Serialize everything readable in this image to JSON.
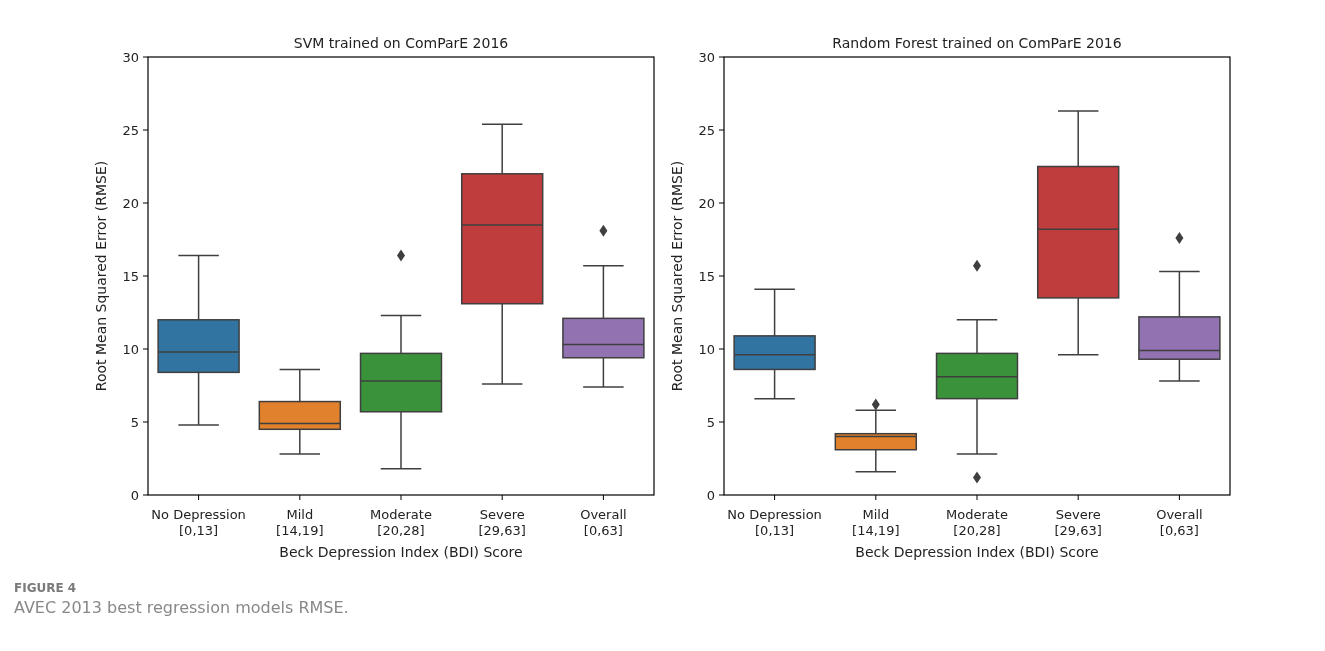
{
  "chart_data": [
    {
      "type": "box",
      "title": "SVM trained on ComParE 2016",
      "xlabel": "Beck Depression Index (BDI) Score",
      "ylabel": "Root Mean Squared Error (RMSE)",
      "categories": [
        "No Depression\n[0,13]",
        "Mild\n[14,19]",
        "Moderate\n[20,28]",
        "Severe\n[29,63]",
        "Overall\n[0,63]"
      ],
      "colors": [
        "#3274a1",
        "#e1812c",
        "#3a923a",
        "#c03d3e",
        "#9372b2"
      ],
      "boxes": [
        {
          "low": 4.8,
          "q1": 8.4,
          "median": 9.8,
          "q3": 12.0,
          "high": 16.4
        },
        {
          "low": 2.8,
          "q1": 4.5,
          "median": 4.9,
          "q3": 6.4,
          "high": 8.6
        },
        {
          "low": 1.8,
          "q1": 5.7,
          "median": 7.8,
          "q3": 9.7,
          "high": 12.3,
          "outliers": [
            16.4
          ]
        },
        {
          "low": 7.6,
          "q1": 13.1,
          "median": 18.5,
          "q3": 22.0,
          "high": 25.4
        },
        {
          "low": 7.4,
          "q1": 9.4,
          "median": 10.3,
          "q3": 12.1,
          "high": 15.7,
          "outliers": [
            18.1
          ]
        }
      ],
      "ylim": [
        0,
        30
      ],
      "yticks": [
        0,
        5,
        10,
        15,
        20,
        25,
        30
      ],
      "grid": false,
      "annotations": [
        "FIGURE 4",
        "AVEC 2013 best regression models RMSE."
      ]
    },
    {
      "type": "box",
      "title": "Random Forest trained on ComParE 2016",
      "xlabel": "Beck Depression Index (BDI) Score",
      "ylabel": "Root Mean Squared Error (RMSE)",
      "categories": [
        "No Depression\n[0,13]",
        "Mild\n[14,19]",
        "Moderate\n[20,28]",
        "Severe\n[29,63]",
        "Overall\n[0,63]"
      ],
      "colors": [
        "#3274a1",
        "#e1812c",
        "#3a923a",
        "#c03d3e",
        "#9372b2"
      ],
      "boxes": [
        {
          "low": 6.6,
          "q1": 8.6,
          "median": 9.6,
          "q3": 10.9,
          "high": 14.1
        },
        {
          "low": 1.6,
          "q1": 3.1,
          "median": 4.0,
          "q3": 4.2,
          "high": 5.8,
          "outliers": [
            6.2
          ]
        },
        {
          "low": 2.8,
          "q1": 6.6,
          "median": 8.1,
          "q3": 9.7,
          "high": 12.0,
          "outliers": [
            15.7,
            1.2
          ]
        },
        {
          "low": 9.6,
          "q1": 13.5,
          "median": 18.2,
          "q3": 22.5,
          "high": 26.3
        },
        {
          "low": 7.8,
          "q1": 9.3,
          "median": 9.9,
          "q3": 12.2,
          "high": 15.3,
          "outliers": [
            17.6
          ]
        }
      ],
      "ylim": [
        0,
        30
      ],
      "yticks": [
        0,
        5,
        10,
        15,
        20,
        25,
        30
      ],
      "grid": false
    }
  ]
}
